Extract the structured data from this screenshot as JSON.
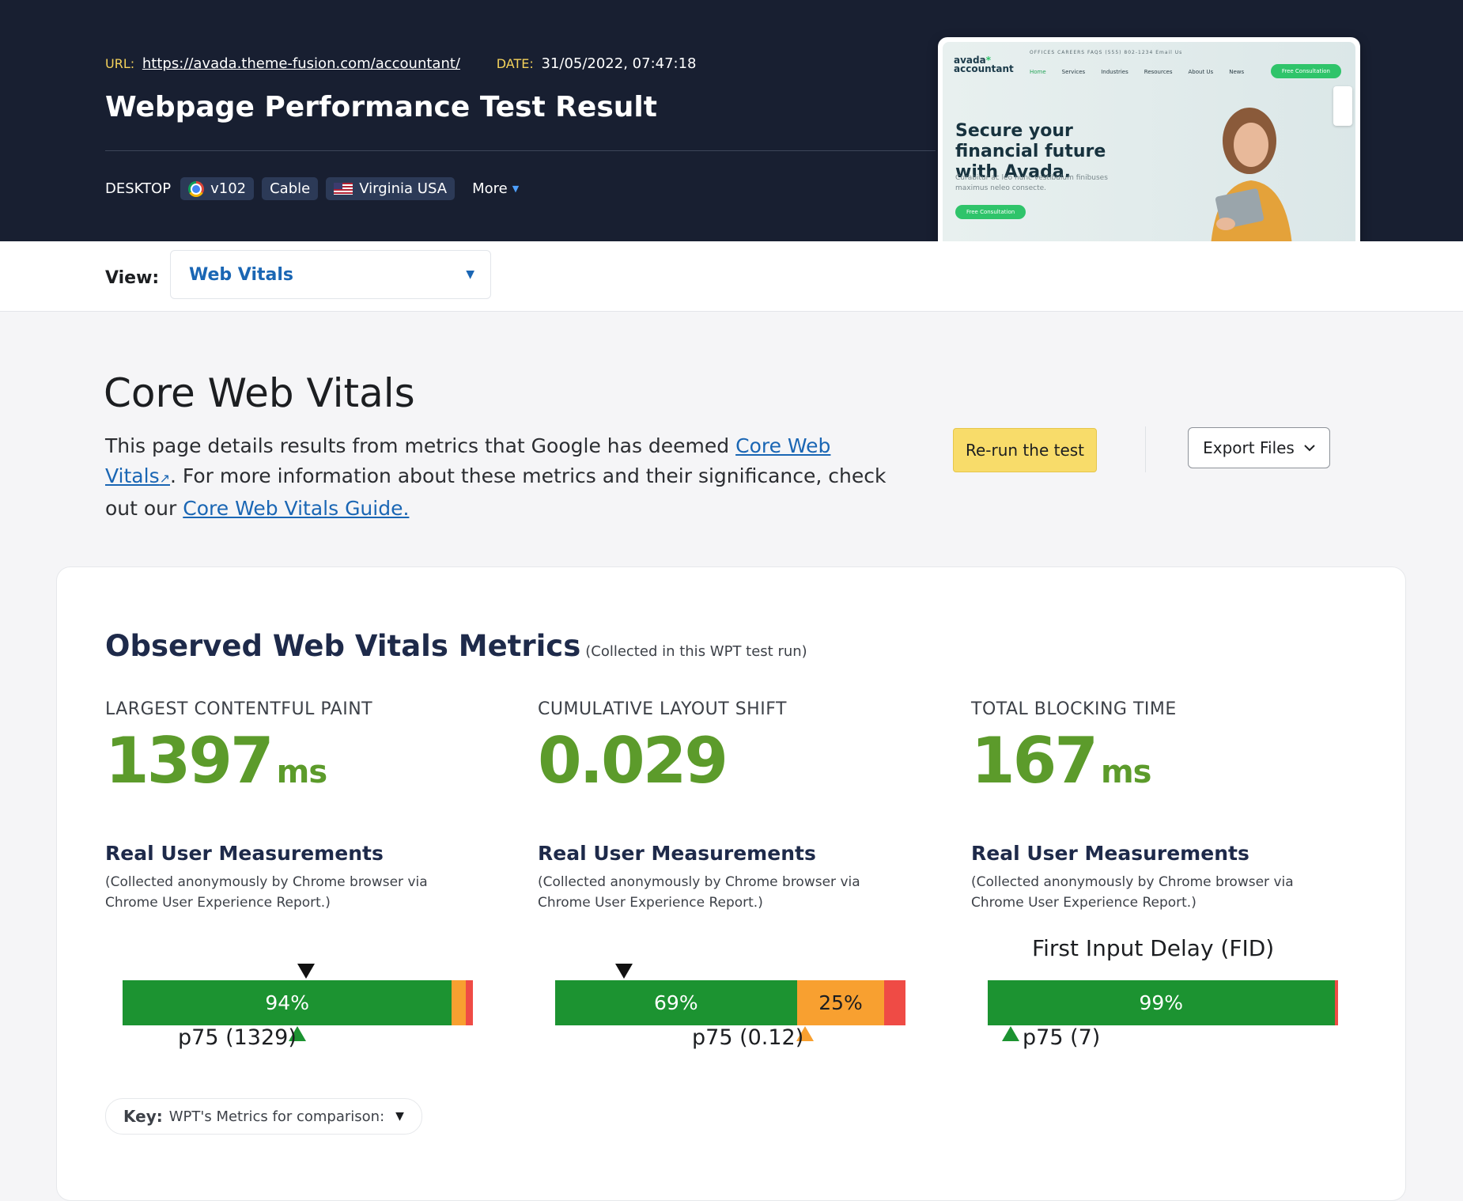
{
  "header": {
    "url_label": "URL:",
    "url": "https://avada.theme-fusion.com/accountant/",
    "date_label": "DATE:",
    "date": "31/05/2022, 07:47:18",
    "title": "Webpage Performance Test Result",
    "device": "DESKTOP",
    "browser_version": "v102",
    "connection": "Cable",
    "location": "Virginia USA",
    "more_label": "More"
  },
  "thumbnail": {
    "logo_line1": "avada",
    "logo_line2": "accountant",
    "topbar": "OFFICES   CAREERS   FAQS            (555) 802-1234     Email Us",
    "nav": [
      "Home",
      "Services",
      "Industries",
      "Resources",
      "About Us",
      "News"
    ],
    "cta": "Free Consultation",
    "headline": "Secure your financial future with Avada.",
    "sub": "Curabitur ac leo nunc vestibulum finibuses maximus neleo consecte.",
    "button": "Free Consultation"
  },
  "view": {
    "label": "View:",
    "value": "Web Vitals"
  },
  "intro": {
    "title": "Core Web Vitals",
    "text_before": "This page details results from metrics that Google has deemed ",
    "link1": "Core Web Vitals",
    "text_middle": ". For more information about these metrics and their significance, check out our ",
    "link2": "Core Web Vitals Guide.",
    "rerun_label": "Re-run the test",
    "export_label": "Export Files"
  },
  "observed": {
    "title": "Observed Web Vitals Metrics",
    "subtitle": "(Collected in this WPT test run)"
  },
  "metrics": [
    {
      "label": "LARGEST CONTENTFUL PAINT",
      "value": "1397",
      "unit": "ms",
      "rum_title": "Real User Measurements",
      "rum_note": "(Collected anonymously by Chrome browser via Chrome User Experience Report.)",
      "distribution": {
        "good": 94,
        "needs_improvement": 4,
        "poor": 2
      },
      "good_label": "94%",
      "ni_label": "",
      "p75_label": "p75 (1329)",
      "p75_marker": "good"
    },
    {
      "label": "CUMULATIVE LAYOUT SHIFT",
      "value": "0.029",
      "unit": "",
      "rum_title": "Real User Measurements",
      "rum_note": "(Collected anonymously by Chrome browser via Chrome User Experience Report.)",
      "distribution": {
        "good": 69,
        "needs_improvement": 25,
        "poor": 6
      },
      "good_label": "69%",
      "ni_label": "25%",
      "p75_label": "p75 (0.12)",
      "p75_marker": "needs_improvement"
    },
    {
      "label": "TOTAL BLOCKING TIME",
      "value": "167",
      "unit": "ms",
      "rum_title": "Real User Measurements",
      "rum_note": "(Collected anonymously by Chrome browser via Chrome User Experience Report.)",
      "fid_title": "First Input Delay (FID)",
      "distribution": {
        "good": 99,
        "needs_improvement": 0,
        "poor": 1
      },
      "good_label": "99%",
      "ni_label": "",
      "p75_label": "p75 (7)",
      "p75_marker": "good"
    }
  ],
  "key": {
    "label": "Key:",
    "text": "WPT's Metrics for comparison:"
  },
  "colors": {
    "header_bg": "#181f31",
    "good": "#1c9331",
    "needs_improvement": "#f8a030",
    "poor": "#ef4b45",
    "metric_value": "#5c9b2b",
    "link": "#1a66b4",
    "rerun_bg": "#f8dc6a"
  }
}
